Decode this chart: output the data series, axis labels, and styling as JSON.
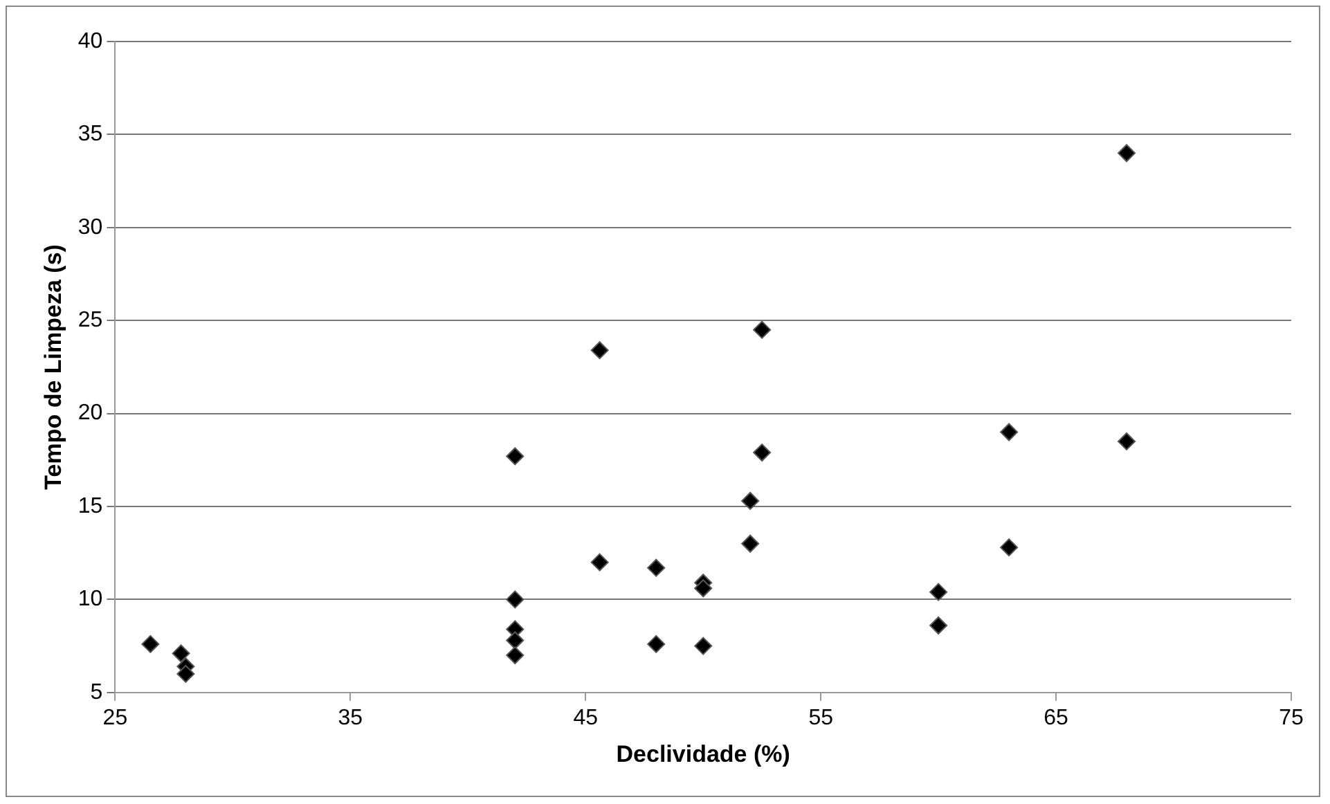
{
  "chart_data": {
    "type": "scatter",
    "xlabel": "Declividade (%)",
    "ylabel": "Tempo de Limpeza (s)",
    "x": [
      26.5,
      27.8,
      28,
      28,
      42,
      42,
      42,
      42,
      42,
      45.6,
      45.6,
      48,
      48,
      50,
      50,
      50,
      52,
      52,
      52.5,
      52.5,
      60,
      60,
      63,
      63,
      68,
      68
    ],
    "series": [
      {
        "color": "#000000",
        "values": [
          7.6,
          7.1,
          6.4,
          6.0,
          17.7,
          10,
          8.4,
          7.8,
          7.0,
          23.4,
          12,
          11.7,
          7.6,
          10.9,
          10.6,
          7.5,
          15.3,
          13,
          24.5,
          17.9,
          10.4,
          8.6,
          19,
          12.8,
          34,
          18.5
        ]
      }
    ],
    "xlim": [
      25,
      75
    ],
    "xticks": [
      25,
      35,
      45,
      55,
      65,
      75
    ],
    "ylim": [
      5,
      40
    ],
    "yticks": [
      5,
      10,
      15,
      20,
      25,
      30,
      35,
      40
    ],
    "grid": "y",
    "marker": "diamond",
    "legend": false
  }
}
